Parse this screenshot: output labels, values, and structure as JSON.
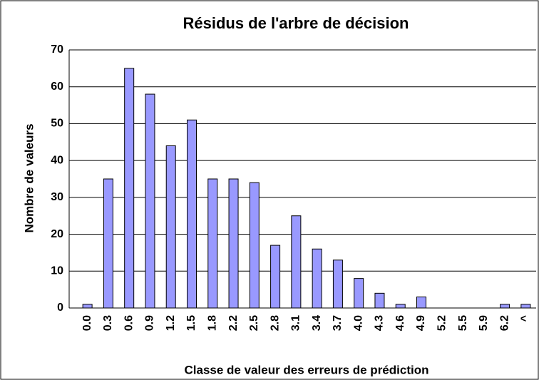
{
  "chart_data": {
    "type": "bar",
    "title": "Résidus de l'arbre de décision",
    "x_label": "Classe de valeur des erreurs de prédiction",
    "y_label": "Nombre de valeurs",
    "categories": [
      "0.0",
      "0.3",
      "0.6",
      "0.9",
      "1.2",
      "1.5",
      "1.8",
      "2.2",
      "2.5",
      "2.8",
      "3.1",
      "3.4",
      "3.7",
      "4.0",
      "4.3",
      "4.6",
      "4.9",
      "5.2",
      "5.5",
      "5.9",
      "6.2",
      "^"
    ],
    "values": [
      1,
      35,
      65,
      58,
      44,
      51,
      35,
      35,
      34,
      17,
      25,
      16,
      13,
      8,
      4,
      1,
      3,
      0,
      0,
      0,
      1,
      1
    ],
    "color": "#9999ff",
    "ylim": [
      0,
      70
    ],
    "yticks": [
      0,
      10,
      20,
      30,
      40,
      50,
      60,
      70
    ],
    "grid": true
  }
}
